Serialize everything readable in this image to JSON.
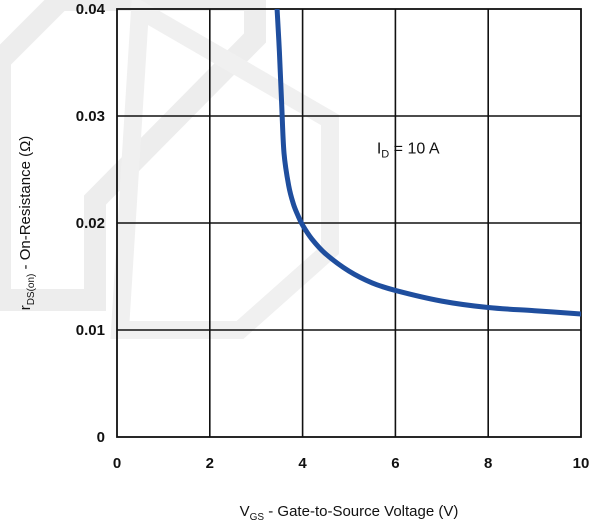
{
  "chart_data": {
    "type": "line",
    "title": "",
    "xlabel": {
      "main": "V",
      "sub": "GS",
      "rest": " - Gate-to-Source Voltage (V)"
    },
    "ylabel": {
      "main": "r",
      "sub": "DS(on)",
      "rest": " - On-Resistance (Ω)"
    },
    "xlim": [
      0,
      10
    ],
    "ylim": [
      0,
      0.04
    ],
    "xticks": [
      "0",
      "2",
      "4",
      "6",
      "8",
      "10"
    ],
    "yticks": [
      "0",
      "0.01",
      "0.02",
      "0.03",
      "0.04"
    ],
    "grid": true,
    "series": [
      {
        "color": "#1f4e9e",
        "x": [
          3.45,
          3.5,
          3.55,
          3.6,
          3.7,
          3.8,
          3.9,
          4.0,
          4.2,
          4.5,
          5.0,
          5.5,
          6.0,
          7.0,
          8.0,
          9.0,
          10.0
        ],
        "y": [
          0.04,
          0.036,
          0.031,
          0.0265,
          0.0235,
          0.0218,
          0.0207,
          0.0198,
          0.0185,
          0.0171,
          0.0155,
          0.0144,
          0.0137,
          0.0127,
          0.0121,
          0.0118,
          0.0115
        ]
      }
    ],
    "annotations": [
      {
        "main": "I",
        "sub": "D",
        "rest": " = 10 A",
        "x": 5.6,
        "y": 0.0265
      }
    ]
  }
}
